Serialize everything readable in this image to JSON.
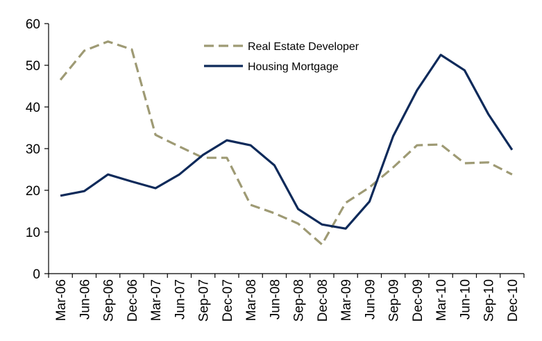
{
  "chart_data": {
    "type": "line",
    "title": "",
    "xlabel": "",
    "ylabel": "",
    "ylim": [
      0,
      60
    ],
    "yticks": [
      0,
      10,
      20,
      30,
      40,
      50,
      60
    ],
    "grid": false,
    "legend_position": "top-center",
    "categories": [
      "Mar-06",
      "Jun-06",
      "Sep-06",
      "Dec-06",
      "Mar-07",
      "Jun-07",
      "Sep-07",
      "Dec-07",
      "Mar-08",
      "Jun-08",
      "Sep-08",
      "Dec-08",
      "Mar-09",
      "Jun-09",
      "Sep-09",
      "Dec-09",
      "Mar-10",
      "Jun-10",
      "Sep-10",
      "Dec-10"
    ],
    "series": [
      {
        "name": "Real Estate Developer",
        "color": "#9e9a74",
        "style": "dashed",
        "values": [
          46.5,
          53.5,
          55.7,
          53.8,
          33.3,
          30.5,
          27.8,
          27.8,
          16.5,
          14.5,
          12.0,
          7.0,
          17.0,
          20.7,
          25.5,
          30.8,
          31.0,
          26.5,
          26.7,
          23.8
        ]
      },
      {
        "name": "Housing Mortgage",
        "color": "#0e2a5a",
        "style": "solid",
        "values": [
          18.7,
          19.8,
          23.8,
          22.1,
          20.5,
          23.8,
          28.5,
          32.0,
          30.8,
          26.0,
          15.5,
          11.8,
          10.8,
          17.3,
          33.0,
          44.0,
          52.5,
          48.8,
          38.3,
          29.7
        ]
      }
    ]
  }
}
